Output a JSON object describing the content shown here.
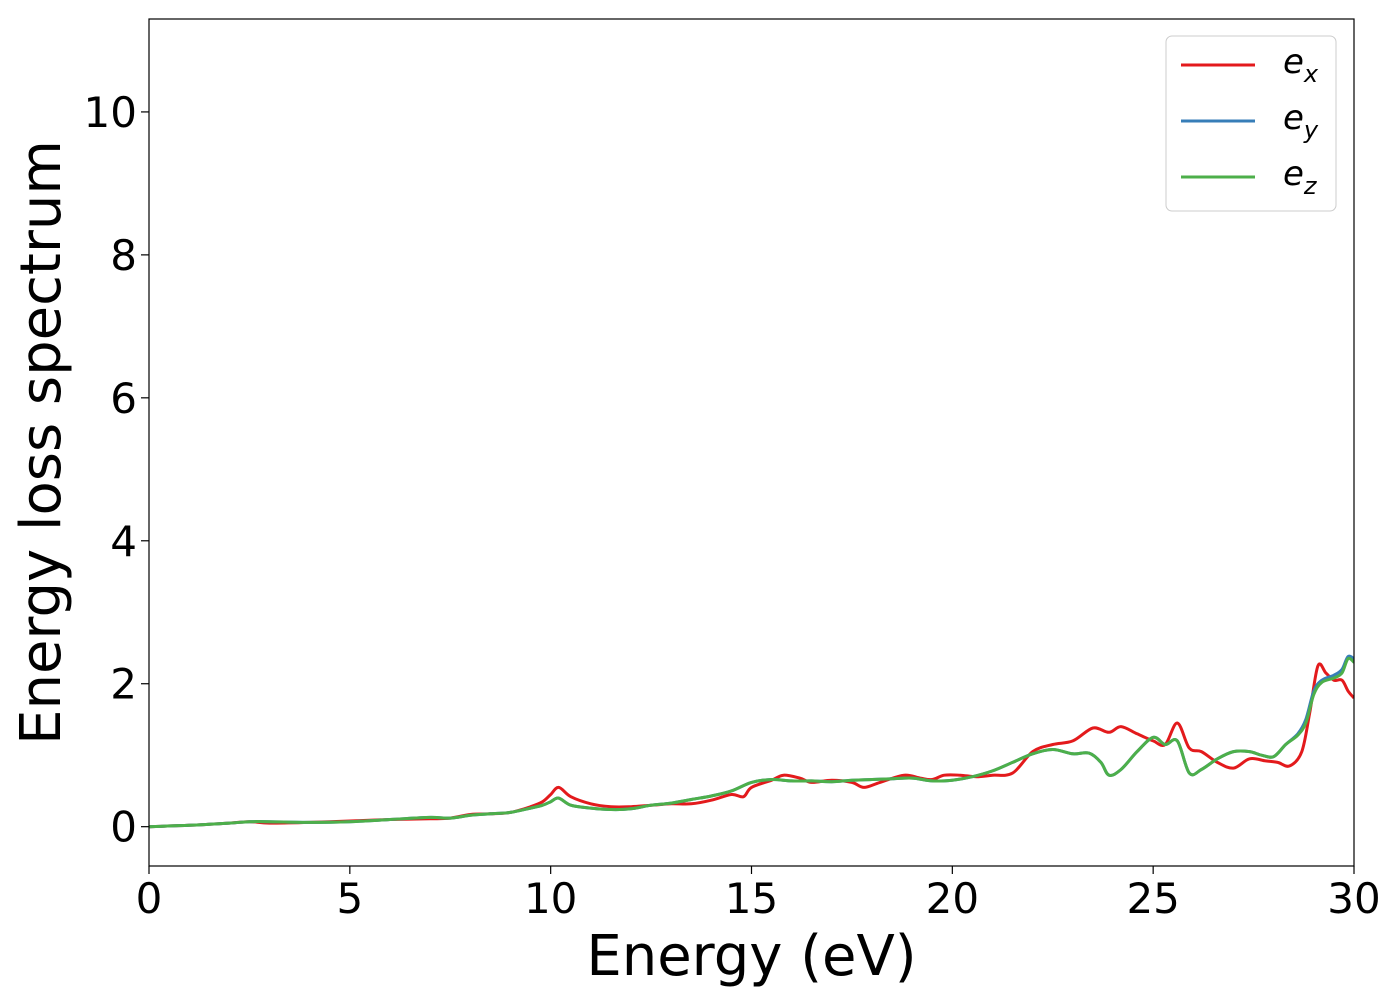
{
  "chart_data": {
    "type": "line",
    "xlabel": "Energy (eV)",
    "ylabel": "Energy loss spectrum",
    "xlim": [
      0,
      30
    ],
    "ylim": [
      -0.55,
      11.3
    ],
    "xticks": [
      0,
      5,
      10,
      15,
      20,
      25,
      30
    ],
    "yticks": [
      0,
      2,
      4,
      6,
      8,
      10
    ],
    "grid": false,
    "legend": "top-right",
    "series": [
      {
        "name": "e_x",
        "label_base": "e",
        "label_sub": "x",
        "color": "#e31a1c",
        "x": [
          0,
          1,
          2,
          2.5,
          3,
          4,
          5,
          6,
          7,
          7.5,
          8,
          8.5,
          9,
          9.5,
          9.8,
          10.0,
          10.2,
          10.5,
          11,
          11.5,
          12,
          12.5,
          13,
          13.5,
          14,
          14.5,
          14.8,
          15,
          15.5,
          15.8,
          16.2,
          16.5,
          17,
          17.5,
          17.8,
          18.2,
          18.8,
          19.2,
          19.5,
          19.8,
          20.2,
          20.6,
          21,
          21.5,
          22,
          22.5,
          23,
          23.5,
          23.9,
          24.2,
          24.6,
          25.0,
          25.3,
          25.6,
          25.9,
          26.2,
          26.6,
          27.0,
          27.4,
          27.8,
          28.1,
          28.4,
          28.7,
          28.9,
          29.1,
          29.3,
          29.5,
          29.7,
          29.85,
          30
        ],
        "y": [
          0.0,
          0.02,
          0.05,
          0.07,
          0.05,
          0.06,
          0.08,
          0.1,
          0.11,
          0.12,
          0.17,
          0.18,
          0.2,
          0.28,
          0.35,
          0.45,
          0.55,
          0.42,
          0.32,
          0.28,
          0.28,
          0.3,
          0.32,
          0.32,
          0.37,
          0.45,
          0.42,
          0.55,
          0.65,
          0.72,
          0.68,
          0.62,
          0.65,
          0.62,
          0.55,
          0.62,
          0.72,
          0.68,
          0.66,
          0.72,
          0.72,
          0.7,
          0.72,
          0.75,
          1.05,
          1.15,
          1.2,
          1.38,
          1.32,
          1.4,
          1.3,
          1.2,
          1.15,
          1.45,
          1.1,
          1.05,
          0.9,
          0.82,
          0.95,
          0.92,
          0.9,
          0.85,
          1.05,
          1.6,
          2.25,
          2.15,
          2.05,
          2.05,
          1.9,
          1.8
        ]
      },
      {
        "name": "e_y",
        "label_base": "e",
        "label_sub": "y",
        "color": "#377eb8",
        "x": [
          0,
          1,
          2,
          2.5,
          3,
          4,
          5,
          6,
          7,
          7.5,
          8,
          8.5,
          9,
          9.5,
          9.8,
          10.0,
          10.2,
          10.5,
          11,
          11.5,
          12,
          12.5,
          13,
          13.5,
          14,
          14.5,
          15,
          15.5,
          16,
          16.5,
          17,
          17.5,
          18,
          18.5,
          19,
          19.5,
          20,
          20.5,
          21,
          21.5,
          22,
          22.5,
          23,
          23.4,
          23.7,
          23.9,
          24.2,
          24.6,
          25.0,
          25.3,
          25.6,
          25.9,
          26.2,
          26.6,
          27.0,
          27.4,
          27.7,
          28.0,
          28.3,
          28.6,
          28.8,
          29.0,
          29.2,
          29.5,
          29.7,
          29.85,
          30
        ],
        "y": [
          0.0,
          0.02,
          0.05,
          0.07,
          0.07,
          0.06,
          0.07,
          0.1,
          0.13,
          0.12,
          0.16,
          0.18,
          0.2,
          0.26,
          0.3,
          0.35,
          0.4,
          0.3,
          0.26,
          0.24,
          0.25,
          0.3,
          0.33,
          0.38,
          0.43,
          0.5,
          0.62,
          0.66,
          0.64,
          0.64,
          0.63,
          0.65,
          0.66,
          0.67,
          0.68,
          0.64,
          0.65,
          0.7,
          0.78,
          0.9,
          1.02,
          1.08,
          1.02,
          1.03,
          0.9,
          0.72,
          0.8,
          1.05,
          1.25,
          1.15,
          1.2,
          0.75,
          0.8,
          0.95,
          1.05,
          1.05,
          1.0,
          0.98,
          1.15,
          1.3,
          1.5,
          1.9,
          2.05,
          2.12,
          2.2,
          2.38,
          2.35
        ]
      },
      {
        "name": "e_z",
        "label_base": "e",
        "label_sub": "z",
        "color": "#4daf4a",
        "x": [
          0,
          1,
          2,
          2.5,
          3,
          4,
          5,
          6,
          7,
          7.5,
          8,
          8.5,
          9,
          9.5,
          9.8,
          10.0,
          10.2,
          10.5,
          11,
          11.5,
          12,
          12.5,
          13,
          13.5,
          14,
          14.5,
          15,
          15.5,
          16,
          16.5,
          17,
          17.5,
          18,
          18.5,
          19,
          19.5,
          20,
          20.5,
          21,
          21.5,
          22,
          22.5,
          23,
          23.4,
          23.7,
          23.9,
          24.2,
          24.6,
          25.0,
          25.3,
          25.6,
          25.9,
          26.2,
          26.6,
          27.0,
          27.4,
          27.7,
          28.0,
          28.3,
          28.6,
          28.8,
          29.0,
          29.2,
          29.5,
          29.7,
          29.85,
          30
        ],
        "y": [
          0.0,
          0.02,
          0.05,
          0.07,
          0.07,
          0.06,
          0.07,
          0.1,
          0.13,
          0.12,
          0.16,
          0.18,
          0.2,
          0.26,
          0.3,
          0.35,
          0.4,
          0.3,
          0.26,
          0.24,
          0.25,
          0.3,
          0.33,
          0.38,
          0.43,
          0.5,
          0.62,
          0.66,
          0.64,
          0.64,
          0.63,
          0.65,
          0.66,
          0.67,
          0.68,
          0.64,
          0.65,
          0.7,
          0.78,
          0.9,
          1.02,
          1.08,
          1.02,
          1.03,
          0.9,
          0.72,
          0.8,
          1.05,
          1.25,
          1.15,
          1.2,
          0.75,
          0.8,
          0.95,
          1.05,
          1.05,
          1.0,
          0.98,
          1.15,
          1.28,
          1.45,
          1.85,
          2.02,
          2.08,
          2.15,
          2.35,
          2.3
        ]
      }
    ]
  }
}
